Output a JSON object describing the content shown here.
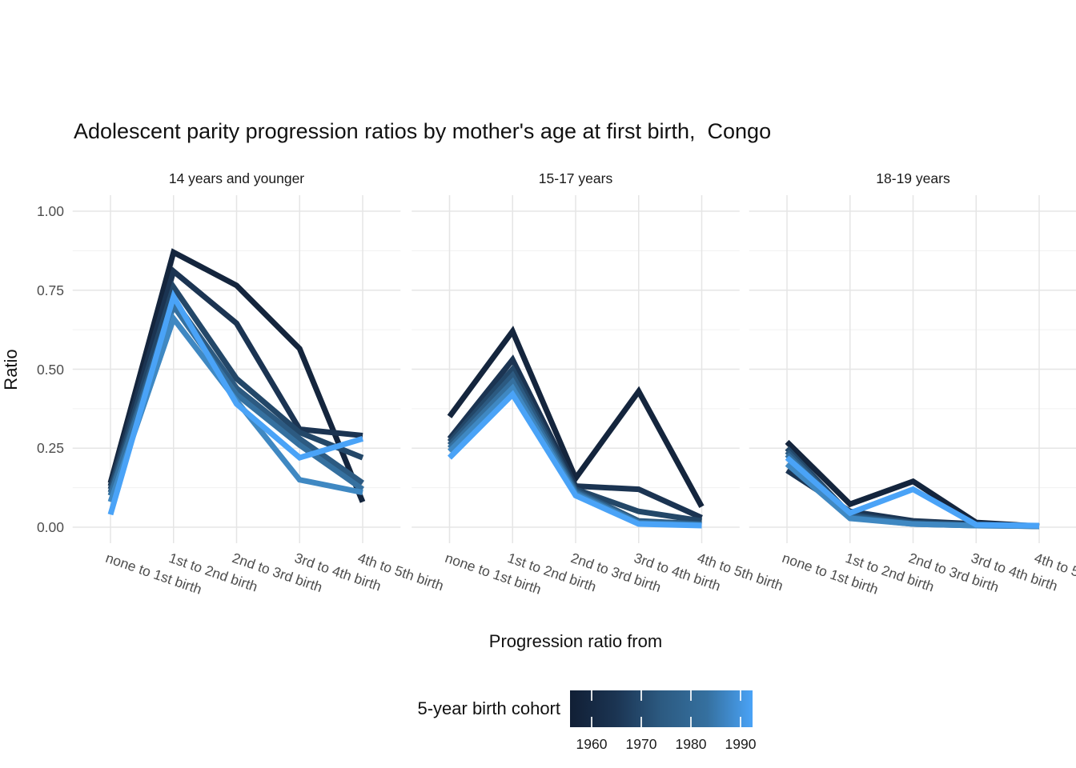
{
  "title": "Adolescent parity progression ratios by mother's age at first birth,  Congo",
  "y_axis": {
    "title": "Ratio",
    "ticks": [
      {
        "label": "1.00",
        "value": 1.0
      },
      {
        "label": "0.75",
        "value": 0.75
      },
      {
        "label": "0.50",
        "value": 0.5
      },
      {
        "label": "0.25",
        "value": 0.25
      },
      {
        "label": "0.00",
        "value": 0.0
      }
    ]
  },
  "x_axis": {
    "title": "Progression ratio from"
  },
  "legend": {
    "title": "5-year birth cohort",
    "tick_labels": [
      "1960",
      "1970",
      "1980",
      "1990"
    ],
    "gradient_stops": [
      "#111F35",
      "#1B3452",
      "#2C5A81",
      "#35709F",
      "#4AA3F7"
    ]
  },
  "chart_data": {
    "type": "line",
    "title": "Adolescent parity progression ratios by mother's age at first birth,  Congo",
    "xlabel": "Progression ratio from",
    "ylabel": "Ratio",
    "ylim": [
      0,
      1
    ],
    "y_major_ticks": [
      0,
      0.25,
      0.5,
      0.75,
      1.0
    ],
    "y_minor_ticks": [
      0.125,
      0.375,
      0.625,
      0.875
    ],
    "grid": "on",
    "legend_position": "bottom",
    "legend_type": "continuous-gradient",
    "categories": [
      "none to 1st birth",
      "1st to 2nd birth",
      "2nd to 3rd birth",
      "3rd to 4th birth",
      "4th to 5th birth"
    ],
    "cohort_colors": {
      "1960": "#14253D",
      "1965": "#1B3452",
      "1970": "#234768",
      "1975": "#2C5A81",
      "1980": "#35709F",
      "1985": "#3F88C2",
      "1990": "#4AA3F7"
    },
    "facets": [
      {
        "label": "14 years and younger",
        "series": [
          {
            "name": "1960",
            "values": [
              0.14,
              0.87,
              0.765,
              0.565,
              0.08
            ]
          },
          {
            "name": "1965",
            "values": [
              0.13,
              0.81,
              0.645,
              0.31,
              0.29
            ]
          },
          {
            "name": "1970",
            "values": [
              0.12,
              0.76,
              0.47,
              0.3,
              0.22
            ]
          },
          {
            "name": "1975",
            "values": [
              0.11,
              0.72,
              0.44,
              0.28,
              0.14
            ]
          },
          {
            "name": "1980",
            "values": [
              0.1,
              0.7,
              0.42,
              0.26,
              0.12
            ]
          },
          {
            "name": "1985",
            "values": [
              0.08,
              0.66,
              0.4,
              0.15,
              0.11
            ]
          },
          {
            "name": "1990",
            "values": [
              0.04,
              0.73,
              0.39,
              0.22,
              0.28
            ]
          }
        ]
      },
      {
        "label": "15-17 years",
        "series": [
          {
            "name": "1960",
            "values": [
              0.35,
              0.62,
              0.155,
              0.43,
              0.065
            ]
          },
          {
            "name": "1965",
            "values": [
              0.28,
              0.53,
              0.13,
              0.12,
              0.03
            ]
          },
          {
            "name": "1970",
            "values": [
              0.27,
              0.5,
              0.12,
              0.05,
              0.02
            ]
          },
          {
            "name": "1975",
            "values": [
              0.26,
              0.48,
              0.115,
              0.02,
              0.01
            ]
          },
          {
            "name": "1980",
            "values": [
              0.25,
              0.46,
              0.11,
              0.015,
              0.008
            ]
          },
          {
            "name": "1985",
            "values": [
              0.24,
              0.44,
              0.105,
              0.012,
              0.006
            ]
          },
          {
            "name": "1990",
            "values": [
              0.22,
              0.42,
              0.1,
              0.01,
              0.005
            ]
          }
        ]
      },
      {
        "label": "18-19 years",
        "series": [
          {
            "name": "1960",
            "values": [
              0.27,
              0.073,
              0.145,
              0.015,
              0.003
            ]
          },
          {
            "name": "1965",
            "values": [
              0.18,
              0.05,
              0.02,
              0.01,
              0.003
            ]
          },
          {
            "name": "1970",
            "values": [
              0.25,
              0.04,
              0.015,
              0.008,
              0.003
            ]
          },
          {
            "name": "1975",
            "values": [
              0.24,
              0.035,
              0.012,
              0.006,
              0.003
            ]
          },
          {
            "name": "1980",
            "values": [
              0.23,
              0.03,
              0.01,
              0.005,
              0.003
            ]
          },
          {
            "name": "1985",
            "values": [
              0.2,
              0.028,
              0.01,
              0.005,
              0.003
            ]
          },
          {
            "name": "1990",
            "values": [
              0.22,
              0.045,
              0.12,
              0.008,
              0.005
            ]
          }
        ]
      }
    ]
  }
}
